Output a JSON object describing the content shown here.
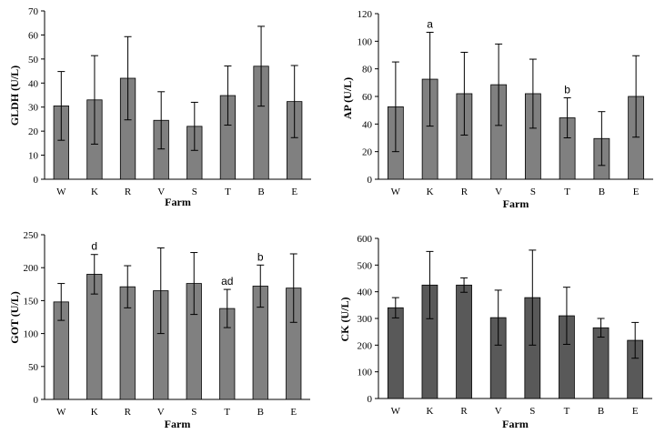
{
  "chart_data": [
    {
      "id": "gldh",
      "type": "bar",
      "ylabel": "GLDH (U/L)",
      "xlabel": "Farm",
      "ylim": [
        0,
        70
      ],
      "ytick_step": 10,
      "ytick_labels": [
        "0",
        "10",
        "20",
        "30",
        "40",
        "50",
        "60",
        "70"
      ],
      "categories": [
        "W",
        "K",
        "R",
        "V",
        "S",
        "T",
        "B",
        "E"
      ],
      "values": [
        30.5,
        33,
        42,
        24.5,
        22,
        34.8,
        47,
        32.3
      ],
      "errors": [
        14.3,
        18.4,
        17.3,
        11.9,
        10,
        12.3,
        16.6,
        15
      ],
      "annotations": [
        "",
        "",
        "",
        "",
        "",
        "",
        "",
        ""
      ],
      "bar_color": "#808080"
    },
    {
      "id": "ap",
      "type": "bar",
      "ylabel": "AP (U/L)",
      "xlabel": "Farm",
      "ylim": [
        0,
        120
      ],
      "ytick_step": 20,
      "ytick_labels": [
        "0",
        "20",
        "40",
        "60",
        "80",
        "100",
        "120"
      ],
      "categories": [
        "W",
        "K",
        "R",
        "V",
        "S",
        "T",
        "B",
        "E"
      ],
      "values": [
        52.5,
        72.5,
        62,
        68.5,
        62,
        44.5,
        29.5,
        60
      ],
      "errors": [
        32.5,
        34,
        30,
        29.5,
        25,
        14.5,
        19.5,
        29.5
      ],
      "annotations": [
        "",
        "a",
        "",
        "",
        "",
        "b",
        "",
        ""
      ],
      "bar_color": "#808080"
    },
    {
      "id": "got",
      "type": "bar",
      "ylabel": "GOT (U/L)",
      "xlabel": "Farm",
      "ylim": [
        0,
        250
      ],
      "ytick_step": 50,
      "ytick_labels": [
        "0",
        "50",
        "100",
        "150",
        "200",
        "250"
      ],
      "categories": [
        "W",
        "K",
        "R",
        "V",
        "S",
        "T",
        "B",
        "E"
      ],
      "values": [
        148,
        190,
        171,
        165,
        176,
        138,
        172,
        169
      ],
      "errors": [
        28,
        30,
        32,
        65,
        47,
        29,
        32,
        52
      ],
      "annotations": [
        "",
        "d",
        "",
        "",
        "",
        "ad",
        "b",
        ""
      ],
      "bar_color": "#808080"
    },
    {
      "id": "ck",
      "type": "bar",
      "ylabel": "CK (U/L)",
      "xlabel": "Farm",
      "ylim": [
        0,
        600
      ],
      "ytick_step": 100,
      "ytick_labels": [
        "0",
        "100",
        "200",
        "300",
        "400",
        "500",
        "600"
      ],
      "categories": [
        "W",
        "K",
        "R",
        "V",
        "S",
        "T",
        "B",
        "E"
      ],
      "values": [
        340,
        425,
        425,
        303,
        378,
        310,
        265,
        218
      ],
      "errors": [
        38,
        126,
        27,
        103,
        178,
        107,
        35,
        67
      ],
      "annotations": [
        "",
        "",
        "",
        "",
        "",
        "",
        "",
        ""
      ],
      "bar_color": "#595959"
    }
  ]
}
